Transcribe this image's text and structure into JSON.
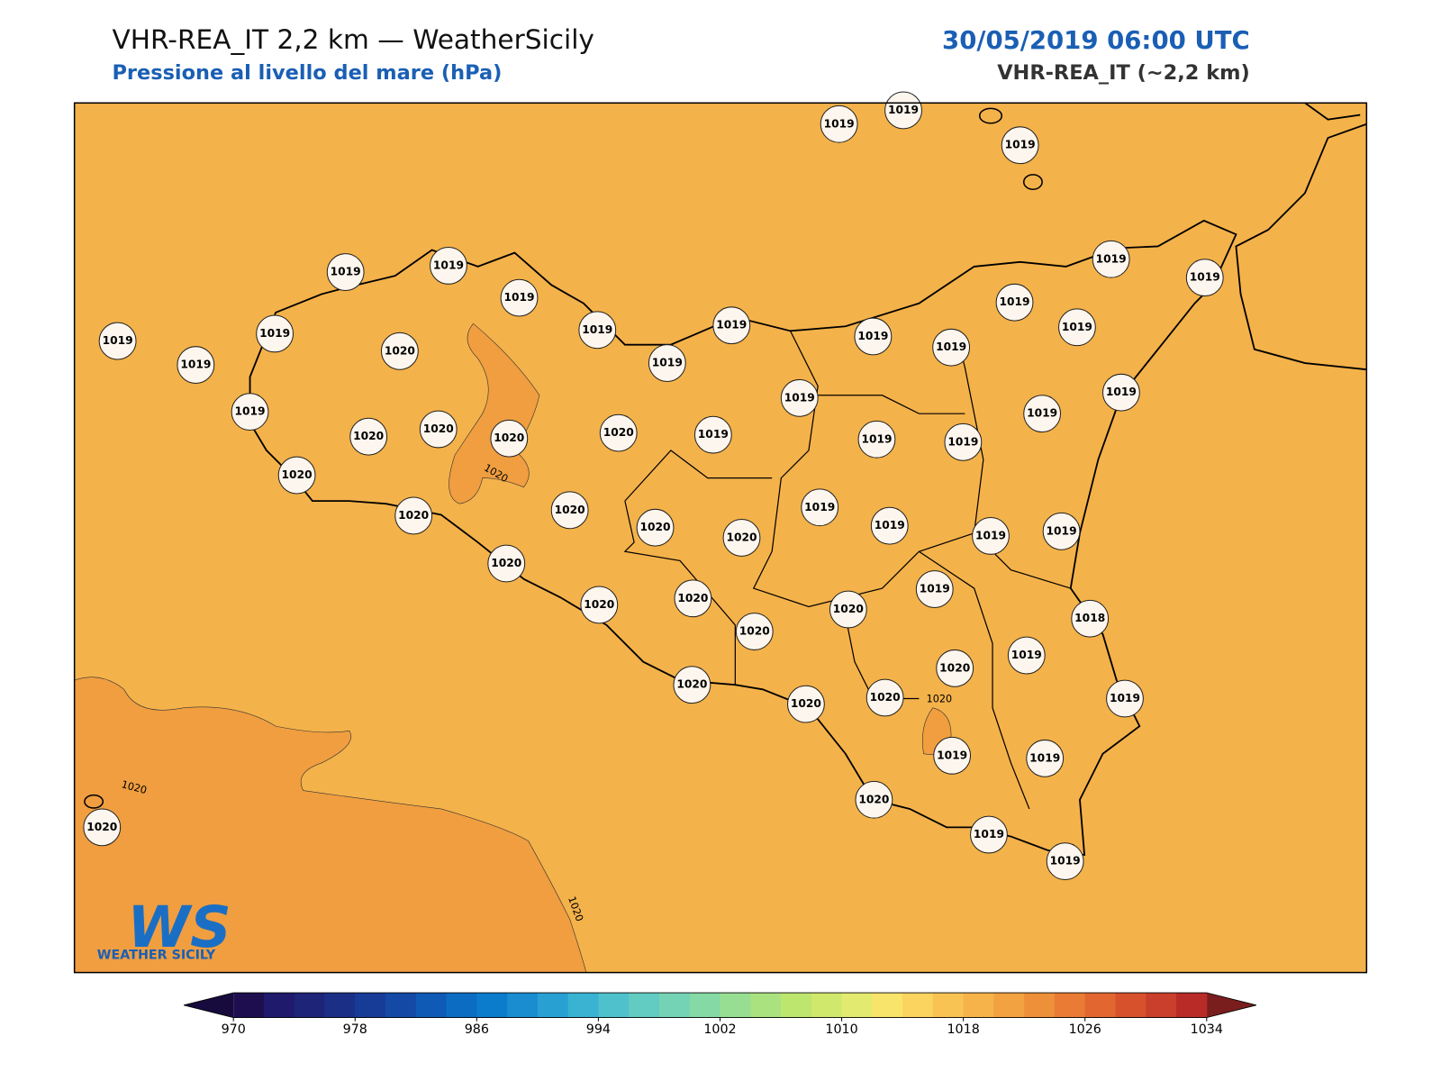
{
  "header": {
    "title": "VHR-REA_IT 2,2 km — WeatherSicily",
    "subtitle": "Pressione al livello del mare (hPa)",
    "date": "30/05/2019 06:00 UTC",
    "model": "VHR-REA_IT (~2,2 km)"
  },
  "stations": [
    1019,
    1019,
    1019,
    1019,
    1019,
    1019,
    1019,
    1019,
    1019,
    1019,
    1019,
    1019,
    1019,
    1019,
    1019,
    1019,
    1019,
    1019,
    1020,
    1019,
    1020,
    1020,
    1020,
    1020,
    1019,
    1019,
    1019,
    1019,
    1019,
    1019,
    1020,
    1020,
    1020,
    1020,
    1020,
    1019,
    1019,
    1019,
    1019,
    1020,
    1020,
    1020,
    1020,
    1020,
    1019,
    1018,
    1020,
    1019,
    1020,
    1020,
    1020,
    1019,
    1019,
    1019,
    1020,
    1019,
    1019,
    1020
  ],
  "contour_labels": [
    "1020",
    "1020",
    "1020",
    "1020"
  ],
  "logo": {
    "mark": "WS",
    "name": "WEATHER SICILY"
  },
  "colorbar": {
    "vlim": [
      970,
      1034
    ],
    "ticks": [
      970,
      978,
      986,
      994,
      1002,
      1010,
      1018,
      1026,
      1034
    ],
    "colors": [
      "#1f0e4f",
      "#1f1a6b",
      "#1e2478",
      "#1b2f87",
      "#173c97",
      "#144aa6",
      "#0f5ab5",
      "#0b6cc2",
      "#0b7ccb",
      "#1a8dd0",
      "#29a0d2",
      "#3ab3d2",
      "#4fc1cc",
      "#62cbc2",
      "#74d3b4",
      "#85d9a4",
      "#98de92",
      "#aae280",
      "#bde66f",
      "#d0e86c",
      "#e3ea70",
      "#f8e36b",
      "#fbd35f",
      "#f8c352",
      "#f5b34a",
      "#f2a240",
      "#ee8f3a",
      "#e97b34",
      "#e1662f",
      "#d7522c",
      "#c93f2b",
      "#b82b27"
    ],
    "under_color": "#170a3d",
    "over_color": "#7a1d1d"
  }
}
